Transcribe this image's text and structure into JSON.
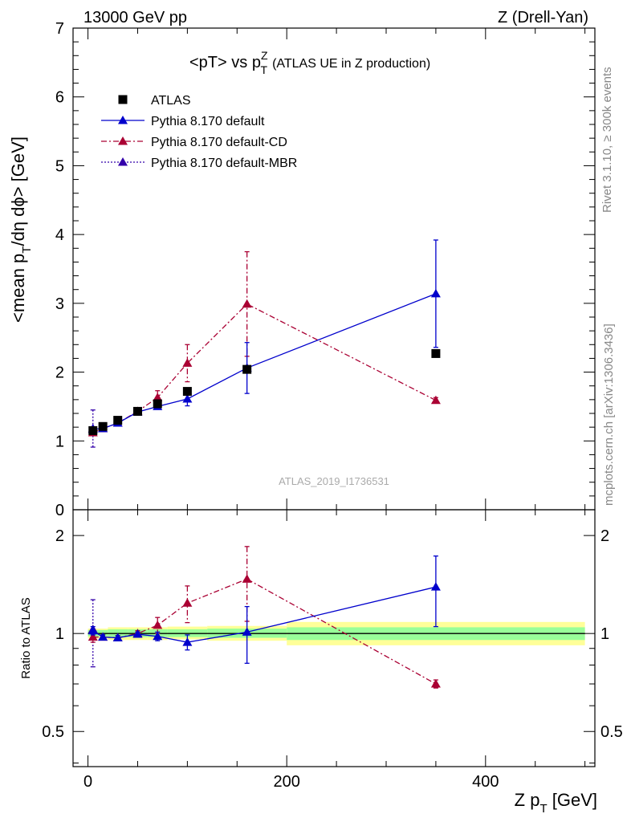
{
  "header": {
    "left": "13000 GeV pp",
    "right": "Z (Drell-Yan)"
  },
  "side_labels": {
    "rivet": "Rivet 3.1.10, ≥ 300k events",
    "mcplots": "mcplots.cern.ch [arXiv:1306.3436]"
  },
  "chart_data": [
    {
      "type": "scatter",
      "panel": "main",
      "title": {
        "main": "<pT> vs p",
        "sup": "Z",
        "sub": "T",
        "note": "(ATLAS UE in Z production)"
      },
      "ylabel": {
        "a": "<mean p",
        "sub": "T",
        "b": "/dη dϕ> [GeV]"
      },
      "watermark": "ATLAS_2019_I1736531",
      "xlim": [
        -15,
        510
      ],
      "ylim": [
        0,
        7
      ],
      "yticks": [
        0,
        1,
        2,
        3,
        4,
        5,
        6,
        7
      ],
      "ytick_labels": [
        "0",
        "1",
        "2",
        "3",
        "4",
        "5",
        "6",
        "7"
      ],
      "legend_position": "top-left",
      "series": [
        {
          "name": "ATLAS",
          "color": "#000000",
          "marker": "square",
          "line": "none",
          "x": [
            5,
            15,
            30,
            50,
            70,
            100,
            160,
            350
          ],
          "y": [
            1.15,
            1.21,
            1.3,
            1.43,
            1.54,
            1.72,
            2.04,
            2.27
          ]
        },
        {
          "name": "Pythia 8.170 default",
          "color": "#0000cc",
          "marker": "triangle",
          "line": "solid",
          "x": [
            5,
            15,
            30,
            50,
            70,
            100,
            160,
            350
          ],
          "y": [
            1.17,
            1.18,
            1.26,
            1.42,
            1.5,
            1.61,
            2.06,
            3.14
          ],
          "yerr": [
            0.03,
            0.02,
            0.02,
            0.02,
            0.04,
            0.1,
            0.37,
            0.78
          ]
        },
        {
          "name": "Pythia 8.170 default-CD",
          "color": "#aa0033",
          "marker": "triangle",
          "line": "dashdot",
          "x": [
            5,
            15,
            30,
            50,
            70,
            100,
            160,
            350
          ],
          "y": [
            1.12,
            1.18,
            1.26,
            1.43,
            1.63,
            2.13,
            2.99,
            1.59
          ],
          "yerr": [
            0.04,
            0.02,
            0.02,
            0.03,
            0.1,
            0.27,
            0.76,
            0.04
          ]
        },
        {
          "name": "Pythia 8.170 default-MBR",
          "color": "#3300aa",
          "marker": "triangle",
          "line": "dotted",
          "x": [
            5
          ],
          "y": [
            1.18
          ],
          "yerr": [
            0.27
          ]
        }
      ]
    },
    {
      "type": "scatter",
      "panel": "ratio",
      "ylabel": "Ratio to ATLAS",
      "xlabel": {
        "a": "Z p",
        "sub": "T",
        "b": " [GeV]"
      },
      "xlim": [
        -15,
        510
      ],
      "ylim": [
        0.39,
        2.4
      ],
      "log_y": true,
      "xticks": [
        0,
        200,
        400
      ],
      "xtick_labels": [
        "0",
        "200",
        "400"
      ],
      "yticks": [
        0.5,
        1,
        2
      ],
      "ytick_labels": [
        "0.5",
        "1",
        "2"
      ],
      "bands": [
        {
          "x": [
            0,
            20
          ],
          "green": [
            0.98,
            1.025
          ],
          "yellow": [
            0.965,
            1.035
          ]
        },
        {
          "x": [
            20,
            40
          ],
          "green": [
            0.975,
            1.03
          ],
          "yellow": [
            0.955,
            1.045
          ]
        },
        {
          "x": [
            40,
            60
          ],
          "green": [
            0.975,
            1.03
          ],
          "yellow": [
            0.955,
            1.045
          ]
        },
        {
          "x": [
            60,
            80
          ],
          "green": [
            0.975,
            1.03
          ],
          "yellow": [
            0.955,
            1.045
          ]
        },
        {
          "x": [
            80,
            120
          ],
          "green": [
            0.975,
            1.03
          ],
          "yellow": [
            0.96,
            1.05
          ]
        },
        {
          "x": [
            120,
            200
          ],
          "green": [
            0.97,
            1.035
          ],
          "yellow": [
            0.95,
            1.055
          ]
        },
        {
          "x": [
            200,
            500
          ],
          "green": [
            0.955,
            1.045
          ],
          "yellow": [
            0.92,
            1.085
          ]
        }
      ],
      "series": [
        {
          "name": "Pythia 8.170 default",
          "color": "#0000cc",
          "marker": "triangle",
          "line": "solid",
          "x": [
            5,
            15,
            30,
            50,
            70,
            100,
            160,
            350
          ],
          "y": [
            1.02,
            0.975,
            0.97,
            0.995,
            0.98,
            0.94,
            1.01,
            1.39
          ],
          "yerr": [
            0.03,
            0.015,
            0.015,
            0.015,
            0.03,
            0.05,
            0.2,
            0.34
          ]
        },
        {
          "name": "Pythia 8.170 default-CD",
          "color": "#aa0033",
          "marker": "triangle",
          "line": "dashdot",
          "x": [
            5,
            15,
            30,
            50,
            70,
            100,
            160,
            350
          ],
          "y": [
            0.975,
            0.975,
            0.97,
            1.0,
            1.06,
            1.24,
            1.47,
            0.7
          ],
          "yerr": [
            0.035,
            0.015,
            0.015,
            0.02,
            0.06,
            0.16,
            0.38,
            0.02
          ]
        },
        {
          "name": "Pythia 8.170 default-MBR",
          "color": "#3300aa",
          "marker": "triangle",
          "line": "dotted",
          "x": [
            5
          ],
          "y": [
            1.03
          ],
          "yerr": [
            0.24
          ]
        }
      ]
    }
  ]
}
